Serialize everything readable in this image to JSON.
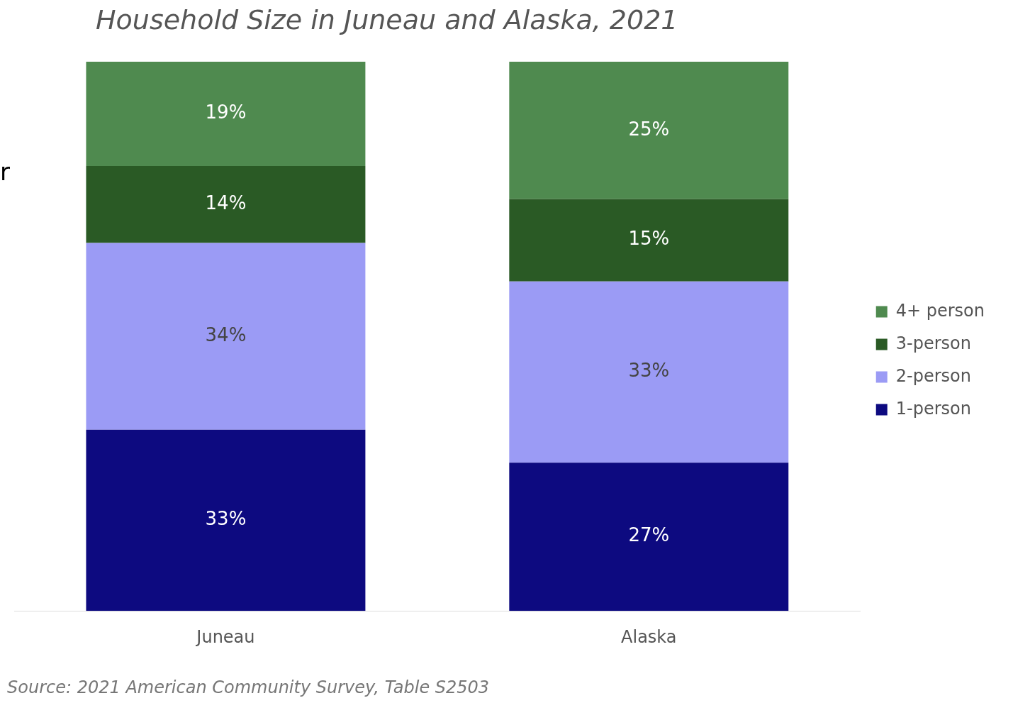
{
  "chart_data": {
    "type": "bar",
    "title": "Household Size in Juneau and Alaska, 2021",
    "categories": [
      "Juneau",
      "Alaska"
    ],
    "stacked": true,
    "tick_labels": "x",
    "grid": false,
    "legend": "right",
    "series": [
      {
        "name": "1-person",
        "color": "#0d0a80",
        "values": [
          33,
          27
        ],
        "value_labels": [
          "33%",
          "27%"
        ]
      },
      {
        "name": "2-person",
        "color": "#9b9bf5",
        "values": [
          34,
          33
        ],
        "value_labels": [
          "34%",
          "33%"
        ]
      },
      {
        "name": "3-person",
        "color": "#2a5a25",
        "values": [
          14,
          15
        ],
        "value_labels": [
          "14%",
          "15%"
        ]
      },
      {
        "name": "4+ person",
        "color": "#4f8a4f",
        "values": [
          19,
          25
        ],
        "value_labels": [
          "19%",
          "25%"
        ]
      }
    ],
    "annotations": [
      "r",
      "Source: 2021 American Community Survey, Table S2503"
    ]
  }
}
